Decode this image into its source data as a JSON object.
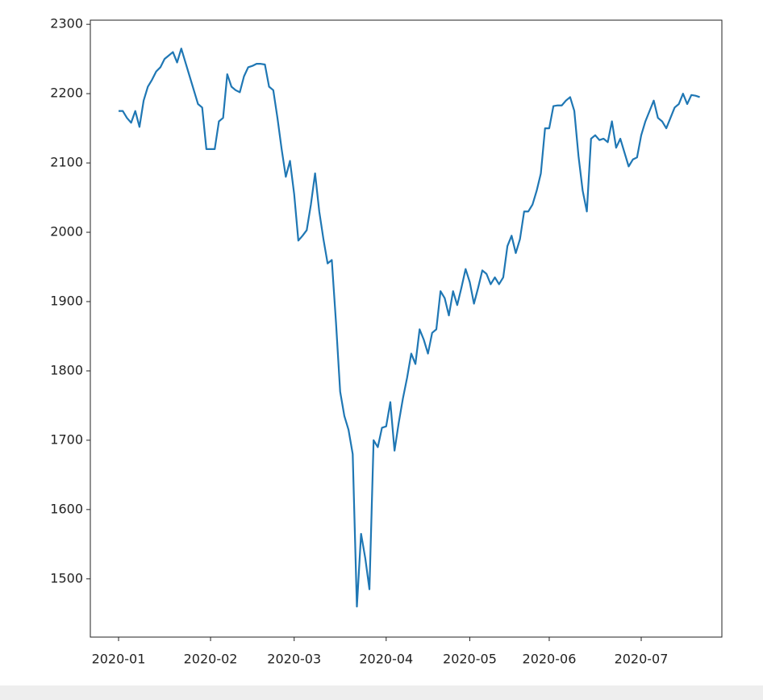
{
  "chart_data": {
    "type": "line",
    "color": "#1f77b4",
    "categories": [
      "2020-01",
      null,
      null,
      null,
      null,
      null,
      null,
      null,
      null,
      null,
      null,
      null,
      null,
      null,
      null,
      null,
      null,
      null,
      null,
      null,
      null,
      null,
      "2020-02",
      null,
      null,
      null,
      null,
      null,
      null,
      null,
      null,
      null,
      null,
      null,
      null,
      null,
      null,
      null,
      null,
      null,
      null,
      null,
      "2020-03",
      null,
      null,
      null,
      null,
      null,
      null,
      null,
      null,
      null,
      null,
      null,
      null,
      null,
      null,
      null,
      null,
      null,
      null,
      null,
      null,
      null,
      "2020-04",
      null,
      null,
      null,
      null,
      null,
      null,
      null,
      null,
      null,
      null,
      null,
      null,
      null,
      null,
      null,
      null,
      null,
      null,
      null,
      "2020-05",
      null,
      null,
      null,
      null,
      null,
      null,
      null,
      null,
      null,
      null,
      null,
      null,
      null,
      null,
      null,
      null,
      null,
      null,
      "2020-06",
      null,
      null,
      null,
      null,
      null,
      null,
      null,
      null,
      null,
      null,
      null,
      null,
      null,
      null,
      null,
      null,
      null,
      null,
      null,
      null,
      null,
      "2020-07",
      null,
      null,
      null,
      null,
      null,
      null,
      null,
      null,
      null,
      null,
      null,
      null,
      null,
      null
    ],
    "values": [
      2175,
      2175,
      2165,
      2158,
      2175,
      2152,
      2190,
      2210,
      2220,
      2232,
      2238,
      2250,
      2255,
      2260,
      2245,
      2265,
      2245,
      2225,
      2205,
      2185,
      2180,
      2120,
      2120,
      2120,
      2160,
      2165,
      2228,
      2210,
      2205,
      2202,
      2225,
      2238,
      2240,
      2243,
      2243,
      2242,
      2210,
      2205,
      2165,
      2120,
      2080,
      2103,
      2055,
      1988,
      1995,
      2003,
      2040,
      2085,
      2030,
      1990,
      1955,
      1960,
      1870,
      1770,
      1735,
      1715,
      1680,
      1460,
      1565,
      1530,
      1485,
      1700,
      1690,
      1718,
      1720,
      1755,
      1685,
      1725,
      1760,
      1790,
      1825,
      1810,
      1860,
      1845,
      1825,
      1855,
      1860,
      1915,
      1905,
      1880,
      1915,
      1895,
      1920,
      1947,
      1928,
      1897,
      1920,
      1945,
      1940,
      1925,
      1935,
      1925,
      1935,
      1980,
      1995,
      1970,
      1990,
      2030,
      2030,
      2040,
      2060,
      2085,
      2150,
      2150,
      2182,
      2183,
      2183,
      2190,
      2195,
      2175,
      2110,
      2060,
      2030,
      2135,
      2140,
      2133,
      2135,
      2130,
      2160,
      2122,
      2135,
      2115,
      2095,
      2105,
      2108,
      2140,
      2160,
      2175,
      2190,
      2165,
      2160,
      2150,
      2165,
      2180,
      2185,
      2200,
      2185,
      2198,
      2197,
      2195
    ],
    "ylim": [
      1416,
      2306
    ],
    "yticks": [
      1500,
      1600,
      1700,
      1800,
      1900,
      2000,
      2100,
      2200,
      2300
    ]
  }
}
